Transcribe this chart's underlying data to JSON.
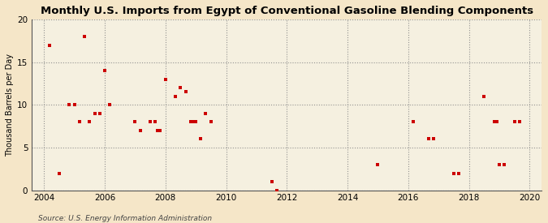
{
  "title": "Monthly U.S. Imports from Egypt of Conventional Gasoline Blending Components",
  "ylabel": "Thousand Barrels per Day",
  "source": "Source: U.S. Energy Information Administration",
  "background_color": "#f5e6c8",
  "plot_bg_color": "#f5f0e0",
  "marker_color": "#cc0000",
  "xlim": [
    2003.6,
    2020.4
  ],
  "ylim": [
    0,
    20
  ],
  "yticks": [
    0,
    5,
    10,
    15,
    20
  ],
  "xticks": [
    2004,
    2006,
    2008,
    2010,
    2012,
    2014,
    2016,
    2018,
    2020
  ],
  "data_points": [
    [
      2004.17,
      17
    ],
    [
      2004.5,
      2
    ],
    [
      2004.83,
      10
    ],
    [
      2005.0,
      10
    ],
    [
      2005.17,
      8
    ],
    [
      2005.5,
      8
    ],
    [
      2005.33,
      18
    ],
    [
      2005.67,
      9
    ],
    [
      2005.83,
      9
    ],
    [
      2006.0,
      14
    ],
    [
      2006.17,
      10
    ],
    [
      2007.0,
      8
    ],
    [
      2007.17,
      7
    ],
    [
      2007.5,
      8
    ],
    [
      2007.67,
      8
    ],
    [
      2007.75,
      7
    ],
    [
      2007.83,
      7
    ],
    [
      2008.0,
      13
    ],
    [
      2008.33,
      11
    ],
    [
      2008.5,
      12
    ],
    [
      2008.67,
      11.5
    ],
    [
      2008.83,
      8
    ],
    [
      2008.92,
      8
    ],
    [
      2009.0,
      8
    ],
    [
      2009.17,
      6
    ],
    [
      2009.33,
      9
    ],
    [
      2009.5,
      8
    ],
    [
      2011.5,
      1
    ],
    [
      2011.67,
      0
    ],
    [
      2015.0,
      3
    ],
    [
      2016.17,
      8
    ],
    [
      2016.67,
      6
    ],
    [
      2016.83,
      6
    ],
    [
      2017.5,
      2
    ],
    [
      2017.67,
      2
    ],
    [
      2018.5,
      11
    ],
    [
      2018.83,
      8
    ],
    [
      2018.92,
      8
    ],
    [
      2019.0,
      3
    ],
    [
      2019.17,
      3
    ],
    [
      2019.5,
      8
    ],
    [
      2019.67,
      8
    ]
  ]
}
